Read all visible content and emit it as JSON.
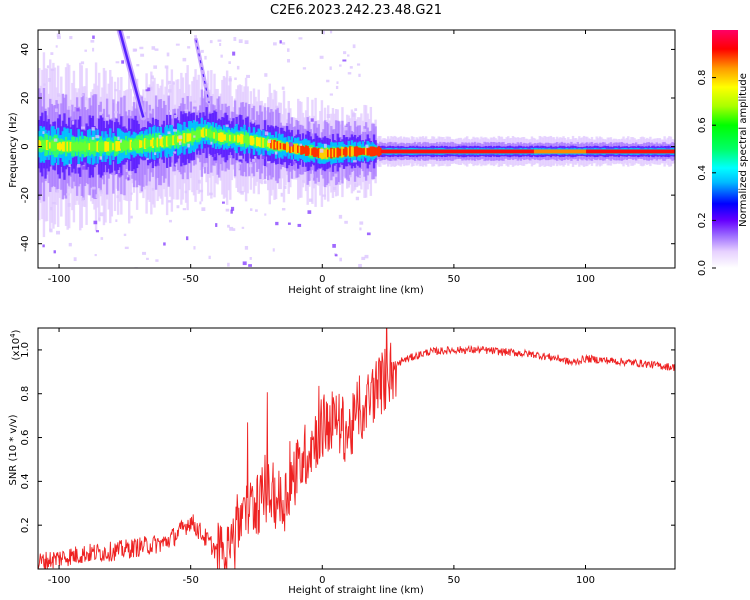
{
  "title": "C2E6.2023.242.23.48.G21",
  "chart_data": [
    {
      "type": "heatmap",
      "xlabel": "Height of straight line (km)",
      "ylabel": "Frequency (Hz)",
      "xlim": [
        -108,
        134
      ],
      "ylim": [
        -50,
        48
      ],
      "x_ticks": [
        -100,
        -50,
        0,
        50,
        100
      ],
      "y_ticks": [
        -40,
        -20,
        0,
        20,
        40
      ],
      "colorbar": {
        "label": "Normalized spectral amplitude",
        "range": [
          0,
          1
        ],
        "ticks": [
          "0.0",
          "0.2",
          "0.4",
          "0.6",
          "0.8"
        ],
        "colors": [
          "#ffffff",
          "#e6d0ff",
          "#9966ff",
          "#6600ff",
          "#0000ff",
          "#00bbff",
          "#00ffff",
          "#00ff66",
          "#00ff00",
          "#aaff00",
          "#ffff00",
          "#ff9900",
          "#ff0000",
          "#ff0066"
        ]
      },
      "main_trace": {
        "x": [
          -108,
          -100,
          -90,
          -80,
          -70,
          -60,
          -50,
          -45,
          -40,
          -30,
          -20,
          -10,
          0,
          10,
          20,
          40,
          60,
          80,
          100,
          120,
          134
        ],
        "y": [
          1,
          0,
          0,
          0,
          1,
          2,
          4,
          6,
          4,
          3,
          1,
          -1,
          -3,
          -2,
          -2,
          -2,
          -2,
          -2,
          -2,
          -2,
          -2
        ]
      },
      "streaks": [
        {
          "x": [
            -77,
            -68
          ],
          "y": [
            48,
            12
          ]
        },
        {
          "x": [
            -48,
            -43
          ],
          "y": [
            44,
            18
          ]
        }
      ]
    },
    {
      "type": "line",
      "xlabel": "Height of straight line (km)",
      "ylabel": "SNR (10 * v/v)",
      "multiplier": "(x10",
      "multiplier_exp": "4",
      "multiplier_close": ")",
      "xlim": [
        -108,
        134
      ],
      "ylim": [
        0,
        1.1
      ],
      "x_ticks": [
        -100,
        -50,
        0,
        50,
        100
      ],
      "y_ticks": [
        0.2,
        0.4,
        0.6,
        0.8,
        1.0
      ],
      "y_tick_labels": [
        "0.2",
        "0.4",
        "0.6",
        "0.8",
        "1.0"
      ],
      "color": "#ee2222",
      "series": [
        {
          "x": [
            -108,
            -100,
            -90,
            -80,
            -70,
            -60,
            -55,
            -50,
            -45,
            -40,
            -35,
            -30,
            -25,
            -20,
            -15,
            -10,
            -5,
            0,
            5,
            10,
            15,
            20,
            25,
            30,
            40,
            50,
            60,
            70,
            80,
            90,
            95,
            100,
            110,
            120,
            134
          ],
          "values": [
            0.03,
            0.05,
            0.07,
            0.08,
            0.1,
            0.12,
            0.16,
            0.22,
            0.15,
            0.08,
            0.15,
            0.25,
            0.3,
            0.35,
            0.3,
            0.45,
            0.55,
            0.65,
            0.68,
            0.62,
            0.72,
            0.82,
            0.88,
            0.95,
            0.99,
            1.0,
            1.0,
            0.99,
            0.98,
            0.96,
            0.94,
            0.96,
            0.95,
            0.94,
            0.92
          ]
        }
      ]
    }
  ]
}
